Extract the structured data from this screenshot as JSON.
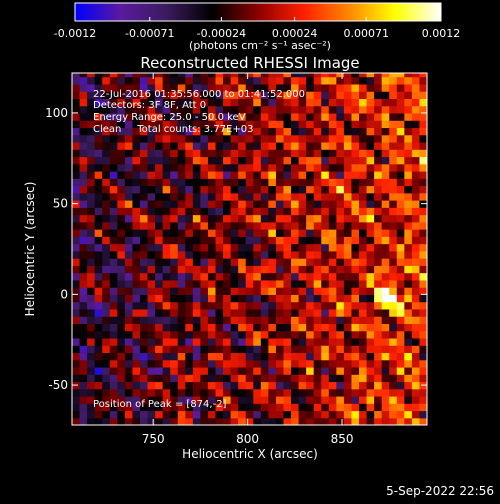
{
  "colorbar": {
    "tick_labels": [
      "-0.0012",
      "-0.00071",
      "-0.00024",
      "0.00024",
      "0.00071",
      "0.0012"
    ],
    "unit_label": "(photons cm⁻² s⁻¹ asec⁻²)"
  },
  "chart_data": {
    "type": "heatmap",
    "title": "Reconstructed RHESSI Image",
    "xlabel": "Heliocentric X (arcsec)",
    "ylabel": "Heliocentric Y (arcsec)",
    "xlim": [
      707,
      895
    ],
    "ylim": [
      -72,
      122
    ],
    "x_ticks": [
      750,
      800,
      850
    ],
    "y_ticks": [
      -50,
      0,
      50,
      100
    ],
    "x_tick_labels": [
      "750",
      "800",
      "850"
    ],
    "y_tick_labels": [
      "-50",
      "0",
      "50",
      "100"
    ],
    "value_range": [
      -0.0012,
      0.0012
    ],
    "colormap": [
      "#0000ff",
      "#5a1a9e",
      "#3b1b5e",
      "#000000",
      "#8b0000",
      "#ff2000",
      "#ff8800",
      "#ffff00",
      "#ffffff"
    ],
    "peak_position": [
      874,
      -2
    ],
    "annotations": {
      "time_range": "22-Jul-2016 01:35:56.000 to 01:41:52.000",
      "detectors": "Detectors: 3F 8F, Att 0",
      "energy_range": "Energy Range: 25.0 - 50.0 keV",
      "algorithm": "Clean     Total counts: 3.77E+03",
      "peak_text": "Position of Peak = [874,-2]"
    }
  },
  "footer": {
    "date_stamp": "5-Sep-2022 22:56"
  }
}
